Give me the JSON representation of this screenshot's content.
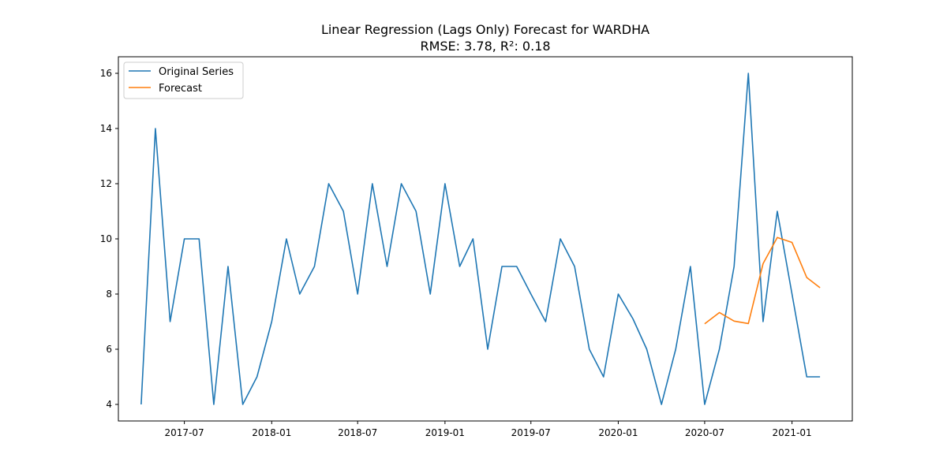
{
  "chart_data": {
    "type": "line",
    "title": "Linear Regression (Lags Only) Forecast for WARDHA",
    "subtitle": "RMSE: 3.78, R²: 0.18",
    "xlabel": "",
    "ylabel": "",
    "x_ticks": [
      "2017-07",
      "2018-01",
      "2018-07",
      "2019-01",
      "2019-07",
      "2020-01",
      "2020-07",
      "2021-01"
    ],
    "y_ticks": [
      "4",
      "6",
      "8",
      "10",
      "12",
      "14",
      "16"
    ],
    "xlim": [
      "2017-02-12",
      "2021-05-08"
    ],
    "ylim": [
      3.4,
      16.6
    ],
    "grid": false,
    "legend_position": "upper left",
    "series": [
      {
        "name": "Original Series",
        "color": "#1f77b4",
        "x": [
          "2017-04-01",
          "2017-05-01",
          "2017-06-01",
          "2017-07-01",
          "2017-08-01",
          "2017-09-01",
          "2017-10-01",
          "2017-11-01",
          "2017-12-01",
          "2018-01-01",
          "2018-02-01",
          "2018-03-01",
          "2018-04-01",
          "2018-05-01",
          "2018-06-01",
          "2018-07-01",
          "2018-08-01",
          "2018-09-01",
          "2018-10-01",
          "2018-11-01",
          "2018-12-01",
          "2019-01-01",
          "2019-02-01",
          "2019-03-01",
          "2019-04-01",
          "2019-05-01",
          "2019-06-01",
          "2019-07-01",
          "2019-08-01",
          "2019-09-01",
          "2019-10-01",
          "2019-11-01",
          "2019-12-01",
          "2020-01-01",
          "2020-02-01",
          "2020-03-01",
          "2020-04-01",
          "2020-05-01",
          "2020-06-01",
          "2020-07-01",
          "2020-08-01",
          "2020-09-01",
          "2020-10-01",
          "2020-11-01",
          "2020-12-01",
          "2021-01-01",
          "2021-02-01",
          "2021-03-01"
        ],
        "values": [
          4,
          14,
          7,
          10,
          10,
          4,
          9,
          4,
          5,
          7,
          10,
          8,
          9,
          12,
          11,
          8,
          12,
          9,
          12,
          11,
          8,
          12,
          9,
          10,
          6,
          9,
          9,
          8,
          7,
          10,
          9,
          6,
          5,
          8,
          7.1,
          6,
          4,
          6,
          9,
          4,
          6,
          9,
          16,
          7,
          11,
          8,
          5,
          5
        ]
      },
      {
        "name": "Forecast",
        "color": "#ff7f0e",
        "x": [
          "2020-07-01",
          "2020-08-01",
          "2020-09-01",
          "2020-10-01",
          "2020-11-01",
          "2020-12-01",
          "2021-01-01",
          "2021-02-01",
          "2021-03-01"
        ],
        "values": [
          6.92,
          7.33,
          7.02,
          6.93,
          9.1,
          10.05,
          9.87,
          8.6,
          8.23
        ]
      }
    ]
  }
}
